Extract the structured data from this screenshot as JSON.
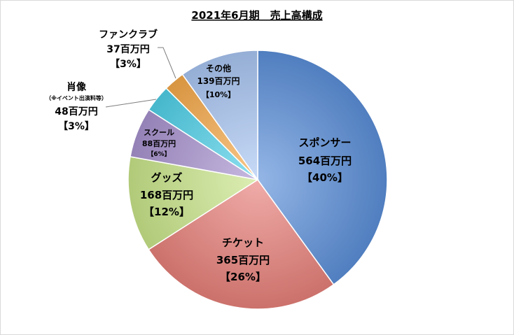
{
  "chart_data": {
    "type": "pie",
    "title": "2021年6月期　売上高構成",
    "start_angle_deg": 0,
    "direction": "clockwise",
    "slices": [
      {
        "name": "スポンサー",
        "value": 564,
        "value_label": "564百万円",
        "percent_label": "【40%】",
        "color": "#5b8fd9"
      },
      {
        "name": "チケット",
        "value": 365,
        "value_label": "365百万円",
        "percent_label": "【26%】",
        "color": "#e8807a"
      },
      {
        "name": "グッズ",
        "value": 168,
        "value_label": "168百万円",
        "percent_label": "【12%】",
        "color": "#c9e58a"
      },
      {
        "name": "スクール",
        "value": 88,
        "value_label": "88百万円",
        "percent_label": "【6%】",
        "color": "#a893cf"
      },
      {
        "name": "肖像",
        "note": "（※イベント出演料等）",
        "value": 48,
        "value_label": "48百万円",
        "percent_label": "【3%】",
        "color": "#4fd0e8"
      },
      {
        "name": "ファンクラブ",
        "value": 37,
        "value_label": "37百万円",
        "percent_label": "【3%】",
        "color": "#f5a94a"
      },
      {
        "name": "その他",
        "value": 139,
        "value_label": "139百万円",
        "percent_label": "【10%】",
        "color": "#a9c6f2"
      }
    ]
  }
}
